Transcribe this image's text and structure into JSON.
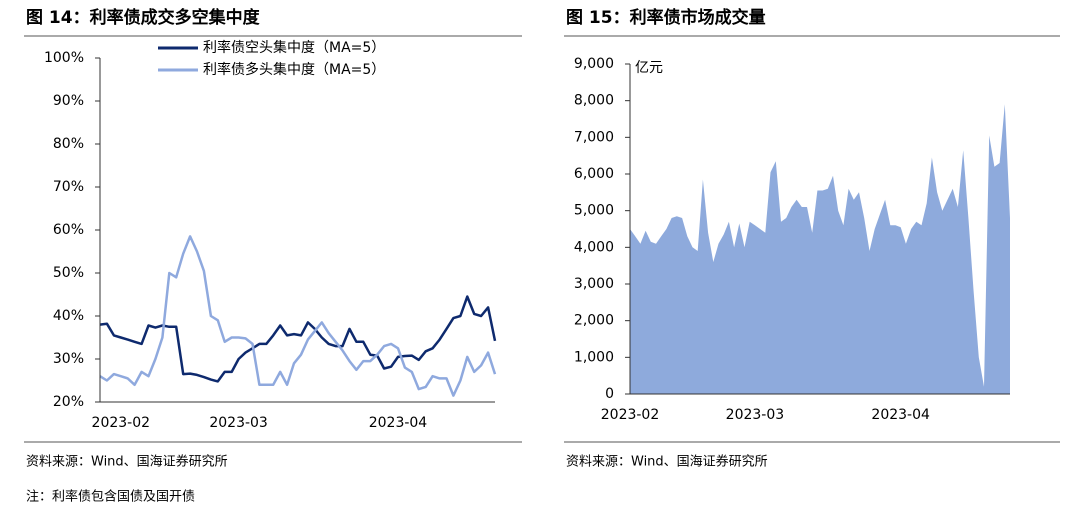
{
  "chart_data": [
    {
      "type": "line",
      "title": "图 14：利率债成交多空集中度",
      "categories": [
        null,
        null,
        null,
        "2023-02",
        null,
        null,
        null,
        null,
        null,
        null,
        null,
        null,
        null,
        null,
        null,
        null,
        null,
        null,
        null,
        null,
        "2023-03",
        null,
        null,
        null,
        null,
        null,
        null,
        null,
        null,
        null,
        null,
        null,
        null,
        null,
        null,
        null,
        null,
        null,
        null,
        null,
        null,
        null,
        null,
        "2023-04",
        null,
        null,
        null,
        null,
        null,
        null,
        null,
        null,
        null,
        null,
        null,
        null,
        null,
        null
      ],
      "series": [
        {
          "name": "利率债空头集中度（MA=5）",
          "color": "#0e2a6e",
          "values": [
            38.0,
            38.2,
            35.5,
            35.0,
            34.5,
            34.0,
            33.5,
            37.8,
            37.3,
            37.8,
            37.5,
            37.5,
            26.5,
            26.6,
            26.3,
            25.8,
            25.2,
            24.8,
            27.0,
            27.0,
            30.0,
            31.5,
            32.5,
            33.5,
            33.5,
            35.5,
            37.8,
            35.5,
            35.8,
            35.5,
            38.5,
            37.0,
            35.0,
            33.5,
            33.0,
            33.0,
            37.0,
            34.0,
            34.0,
            31.0,
            30.8,
            27.8,
            28.2,
            30.5,
            30.7,
            30.8,
            29.8,
            31.8,
            32.5,
            34.5,
            37.0,
            39.5,
            40.0,
            44.5,
            40.5,
            40.0,
            42.0,
            34.2
          ]
        },
        {
          "name": "利率债多头集中度（MA=5）",
          "color": "#8fa9de",
          "values": [
            26.0,
            25.0,
            26.5,
            26.0,
            25.5,
            24.0,
            27.0,
            26.0,
            30.0,
            35.0,
            50.0,
            49.0,
            54.5,
            58.5,
            55.0,
            50.5,
            40.0,
            39.0,
            34.0,
            35.0,
            35.0,
            34.8,
            33.5,
            24.0,
            24.0,
            24.0,
            27.0,
            24.0,
            29.0,
            31.0,
            34.5,
            36.5,
            38.5,
            36.0,
            34.0,
            32.0,
            29.5,
            27.5,
            29.5,
            29.5,
            31.0,
            33.0,
            33.5,
            32.5,
            28.0,
            27.0,
            23.0,
            23.5,
            26.0,
            25.5,
            25.5,
            21.5,
            25.0,
            30.5,
            27.0,
            28.5,
            31.5,
            26.5
          ]
        }
      ],
      "ylim": [
        20,
        100
      ],
      "yticks": [
        {
          "value": 20,
          "label": "20%"
        },
        {
          "value": 30,
          "label": "30%"
        },
        {
          "value": 40,
          "label": "40%"
        },
        {
          "value": 50,
          "label": "50%"
        },
        {
          "value": 60,
          "label": "60%"
        },
        {
          "value": 70,
          "label": "70%"
        },
        {
          "value": 80,
          "label": "80%"
        },
        {
          "value": 90,
          "label": "90%"
        },
        {
          "value": 100,
          "label": "100%"
        }
      ],
      "grid": false,
      "source": "资料来源：Wind、国海证券研究所"
    },
    {
      "type": "area",
      "title": "图 15：利率债市场成交量",
      "y_label": "亿元",
      "categories": [
        "2023-02",
        null,
        null,
        null,
        null,
        null,
        null,
        null,
        null,
        null,
        null,
        null,
        null,
        null,
        null,
        null,
        null,
        null,
        null,
        null,
        null,
        null,
        null,
        null,
        "2023-03",
        null,
        null,
        null,
        null,
        null,
        null,
        null,
        null,
        null,
        null,
        null,
        null,
        null,
        null,
        null,
        null,
        null,
        null,
        null,
        null,
        null,
        null,
        null,
        null,
        null,
        null,
        null,
        "2023-04",
        null,
        null,
        null,
        null,
        null,
        null,
        null,
        null,
        null,
        null,
        null,
        null,
        null,
        null,
        null,
        null,
        null,
        null,
        null,
        null,
        null
      ],
      "values": [
        4500,
        4300,
        4100,
        4450,
        4150,
        4100,
        4300,
        4500,
        4800,
        4850,
        4800,
        4300,
        4000,
        3900,
        5850,
        4400,
        3600,
        4100,
        4350,
        4700,
        4000,
        4650,
        4000,
        4700,
        4600,
        4500,
        4400,
        6050,
        6350,
        4700,
        4800,
        5100,
        5300,
        5100,
        5100,
        4400,
        5550,
        5550,
        5600,
        5950,
        5000,
        4600,
        5600,
        5300,
        5500,
        4800,
        3900,
        4500,
        4900,
        5300,
        4600,
        4600,
        4550,
        4100,
        4500,
        4700,
        4600,
        5200,
        6450,
        5500,
        5000,
        5300,
        5600,
        5100,
        6650,
        4800,
        2800,
        1000,
        200,
        7050,
        6200,
        6300,
        7900,
        4800
      ],
      "color": "#8eaadc",
      "ylim": [
        0,
        9000
      ],
      "yticks": [
        0,
        {
          "value": 1000,
          "label": "1,000"
        },
        {
          "value": 2000,
          "label": "2,000"
        },
        {
          "value": 3000,
          "label": "3,000"
        },
        {
          "value": 4000,
          "label": "4,000"
        },
        {
          "value": 5000,
          "label": "5,000"
        },
        {
          "value": 6000,
          "label": "6,000"
        },
        {
          "value": 7000,
          "label": "7,000"
        },
        {
          "value": 8000,
          "label": "8,000"
        },
        {
          "value": 9000,
          "label": "9,000"
        }
      ],
      "grid": false,
      "source": "资料来源：Wind、国海证券研究所"
    }
  ],
  "note": "注：利率债包含国债及国开债"
}
